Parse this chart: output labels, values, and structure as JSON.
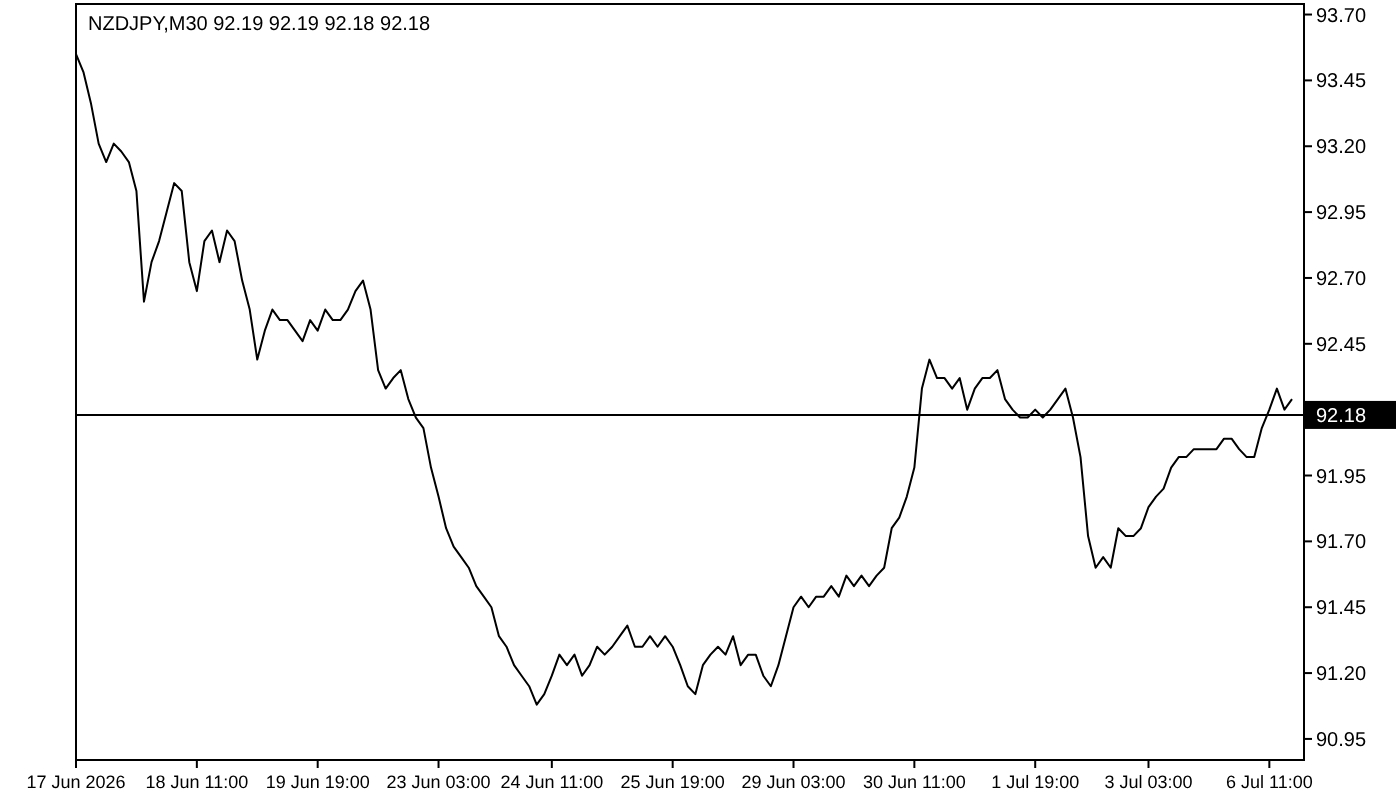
{
  "chart_data": {
    "type": "line",
    "title": "NZDJPY,M30  92.19 92.19 92.18 92.18",
    "categories": [
      "17 Jun 2026",
      null,
      null,
      null,
      null,
      null,
      null,
      null,
      null,
      null,
      null,
      null,
      null,
      null,
      null,
      null,
      "18 Jun 11:00",
      null,
      null,
      null,
      null,
      null,
      null,
      null,
      null,
      null,
      null,
      null,
      null,
      null,
      null,
      null,
      "19 Jun 19:00",
      null,
      null,
      null,
      null,
      null,
      null,
      null,
      null,
      null,
      null,
      null,
      null,
      null,
      null,
      null,
      "23 Jun 03:00",
      null,
      null,
      null,
      null,
      null,
      null,
      null,
      null,
      null,
      null,
      null,
      null,
      null,
      null,
      "24 Jun 11:00",
      null,
      null,
      null,
      null,
      null,
      null,
      null,
      null,
      null,
      null,
      null,
      null,
      null,
      null,
      null,
      "25 Jun 19:00",
      null,
      null,
      null,
      null,
      null,
      null,
      null,
      null,
      null,
      null,
      null,
      null,
      null,
      null,
      null,
      "29 Jun 03:00",
      null,
      null,
      null,
      null,
      null,
      null,
      null,
      null,
      null,
      null,
      null,
      null,
      null,
      null,
      null,
      "30 Jun 11:00",
      null,
      null,
      null,
      null,
      null,
      null,
      null,
      null,
      null,
      null,
      null,
      null,
      null,
      null,
      null,
      "1 Jul 19:00",
      null,
      null,
      null,
      null,
      null,
      null,
      null,
      null,
      null,
      null,
      null,
      null,
      null,
      null,
      "3 Jul 03:00",
      null,
      null,
      null,
      null,
      null,
      null,
      null,
      null,
      null,
      null,
      null,
      null,
      null,
      null,
      null,
      "6 Jul 11:00",
      null,
      null,
      null
    ],
    "series": [
      {
        "color": "#000000",
        "values": [
          93.55,
          93.48,
          93.36,
          93.21,
          93.14,
          93.21,
          93.18,
          93.14,
          93.03,
          92.61,
          92.76,
          92.84,
          92.95,
          93.06,
          93.03,
          92.76,
          92.65,
          92.84,
          92.88,
          92.76,
          92.88,
          92.84,
          92.69,
          92.58,
          92.39,
          92.5,
          92.58,
          92.54,
          92.54,
          92.5,
          92.46,
          92.54,
          92.5,
          92.58,
          92.54,
          92.54,
          92.58,
          92.65,
          92.69,
          92.58,
          92.35,
          92.28,
          92.32,
          92.35,
          92.24,
          92.17,
          92.13,
          91.98,
          91.87,
          91.75,
          91.68,
          91.64,
          91.6,
          91.53,
          91.49,
          91.45,
          91.34,
          91.3,
          91.23,
          91.19,
          91.15,
          91.08,
          91.12,
          91.19,
          91.27,
          91.23,
          91.27,
          91.19,
          91.23,
          91.3,
          91.27,
          91.3,
          91.34,
          91.38,
          91.3,
          91.3,
          91.34,
          91.3,
          91.34,
          91.3,
          91.23,
          91.15,
          91.12,
          91.23,
          91.27,
          91.3,
          91.27,
          91.34,
          91.23,
          91.27,
          91.27,
          91.19,
          91.15,
          91.23,
          91.34,
          91.45,
          91.49,
          91.45,
          91.49,
          91.49,
          91.53,
          91.49,
          91.57,
          91.53,
          91.57,
          91.53,
          91.57,
          91.6,
          91.75,
          91.79,
          91.87,
          91.98,
          92.28,
          92.39,
          92.32,
          92.32,
          92.28,
          92.32,
          92.2,
          92.28,
          92.32,
          92.32,
          92.35,
          92.24,
          92.2,
          92.17,
          92.17,
          92.2,
          92.17,
          92.2,
          92.24,
          92.28,
          92.17,
          92.02,
          91.72,
          91.6,
          91.64,
          91.6,
          91.75,
          91.72,
          91.72,
          91.75,
          91.83,
          91.87,
          91.9,
          91.98,
          92.02,
          92.02,
          92.05,
          92.05,
          92.05,
          92.05,
          92.09,
          92.09,
          92.05,
          92.02,
          92.02,
          92.13,
          92.2,
          92.28,
          92.2,
          92.24
        ]
      }
    ],
    "ylim": [
      90.87,
      93.74
    ],
    "yticks": [
      {
        "value": 93.7,
        "label": "93.70"
      },
      93.45,
      {
        "value": 93.2,
        "label": "93.20"
      },
      92.95,
      {
        "value": 92.7,
        "label": "92.70"
      },
      92.45,
      {
        "value": 92.2,
        "label": null
      },
      91.95,
      {
        "value": 91.7,
        "label": "91.70"
      },
      91.45,
      {
        "value": 91.2,
        "label": "91.20"
      },
      90.95
    ],
    "ref_lines": [
      {
        "axis": "y",
        "value": 92.18,
        "label": "92.18",
        "color": "#000000"
      }
    ],
    "grid": false
  }
}
